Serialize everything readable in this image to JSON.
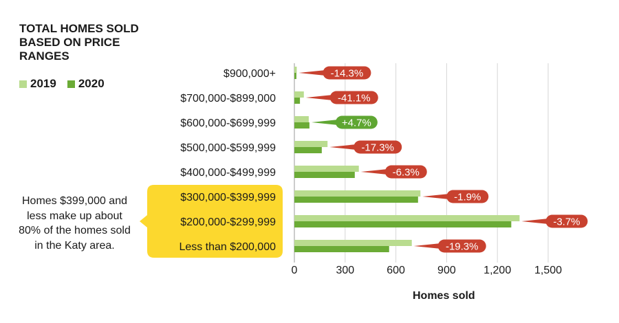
{
  "title": "TOTAL HOMES SOLD BASED ON PRICE RANGES",
  "legend": [
    {
      "label": "2019",
      "color": "#b9dc8f"
    },
    {
      "label": "2020",
      "color": "#6bab36"
    }
  ],
  "note": "Homes $399,000 and less make up about 80% of the homes sold in the Katy area.",
  "highlight_color": "#fcd82e",
  "chart_data": {
    "type": "bar",
    "orientation": "horizontal",
    "categories": [
      "$900,000+",
      "$700,000-$899,000",
      "$600,000-$699,999",
      "$500,000-$599,999",
      "$400,000-$499,999",
      "$300,000-$399,999",
      "$200,000-$299,999",
      "Less than $200,000"
    ],
    "series": [
      {
        "name": "2019",
        "color": "#b9dc8f",
        "values": [
          14,
          56,
          85,
          196,
          381,
          745,
          1331,
          694
        ]
      },
      {
        "name": "2020",
        "color": "#6bab36",
        "values": [
          12,
          33,
          89,
          162,
          357,
          731,
          1282,
          560
        ]
      }
    ],
    "change_labels": [
      "-14.3%",
      "-41.1%",
      "+4.7%",
      "-17.3%",
      "-6.3%",
      "-1.9%",
      "-3.7%",
      "-19.3%"
    ],
    "change_colors": [
      "#c8412f",
      "#c8412f",
      "#5fa632",
      "#c8412f",
      "#c8412f",
      "#c8412f",
      "#c8412f",
      "#c8412f"
    ],
    "highlighted_categories": [
      "$300,000-$399,999",
      "$200,000-$299,999",
      "Less than $200,000"
    ],
    "xlim": [
      0,
      1500
    ],
    "xticks": [
      0,
      300,
      600,
      900,
      1200,
      1500
    ],
    "xtick_labels": [
      "0",
      "300",
      "600",
      "900",
      "1,200",
      "1,500"
    ],
    "xlabel": "Homes sold",
    "grid": true
  }
}
